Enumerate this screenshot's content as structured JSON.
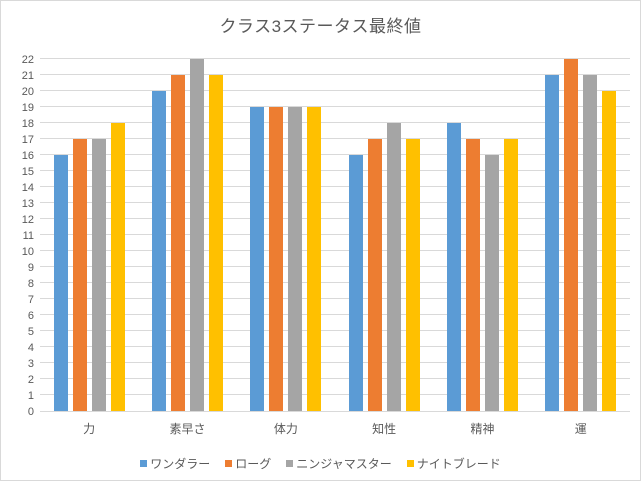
{
  "chart": {
    "background_color": "#FFFFFF",
    "border_color": "#D9D9D9",
    "text_color": "#595959",
    "gridline_color": "#D9D9D9"
  },
  "chart_data": {
    "type": "bar",
    "title": "クラス3ステータス最終値",
    "categories": [
      "力",
      "素早さ",
      "体力",
      "知性",
      "精神",
      "運"
    ],
    "series": [
      {
        "name": "ワンダラー",
        "color": "#5B9BD5",
        "values": [
          16,
          20,
          19,
          16,
          18,
          21
        ]
      },
      {
        "name": "ローグ",
        "color": "#ED7D31",
        "values": [
          17,
          21,
          19,
          17,
          17,
          22
        ]
      },
      {
        "name": "ニンジャマスター",
        "color": "#A5A5A5",
        "values": [
          17,
          22,
          19,
          18,
          16,
          21
        ]
      },
      {
        "name": "ナイトブレード",
        "color": "#FFC000",
        "values": [
          18,
          21,
          19,
          17,
          17,
          20
        ]
      }
    ],
    "xlabel": "",
    "ylabel": "",
    "ylim": [
      0,
      22
    ],
    "ytick_step": 1,
    "grid": true,
    "legend_position": "bottom"
  }
}
